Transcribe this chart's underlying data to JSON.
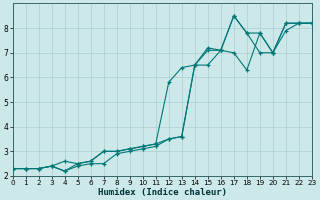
{
  "xlabel": "Humidex (Indice chaleur)",
  "bg_color": "#cce8e8",
  "grid_color_major": "#aacfcf",
  "grid_color_minor": "#bbdddd",
  "line_color": "#007777",
  "xlim": [
    0,
    23
  ],
  "ylim": [
    2,
    9
  ],
  "yticks": [
    2,
    3,
    4,
    5,
    6,
    7,
    8
  ],
  "xticks": [
    0,
    1,
    2,
    3,
    4,
    5,
    6,
    7,
    8,
    9,
    10,
    11,
    12,
    13,
    14,
    15,
    16,
    17,
    18,
    19,
    20,
    21,
    22,
    23
  ],
  "series": [
    [
      2.3,
      2.3,
      2.3,
      2.4,
      2.2,
      2.4,
      2.5,
      2.5,
      2.9,
      3.0,
      3.1,
      3.2,
      3.5,
      3.6,
      6.5,
      7.1,
      7.1,
      7.0,
      6.3,
      7.8,
      7.0,
      8.2,
      8.2,
      8.2
    ],
    [
      2.3,
      2.3,
      2.3,
      2.4,
      2.6,
      2.5,
      2.6,
      3.0,
      3.0,
      3.1,
      3.2,
      3.3,
      5.8,
      6.4,
      6.5,
      7.2,
      7.1,
      8.5,
      7.8,
      7.0,
      7.0,
      8.2,
      8.2,
      8.2
    ],
    [
      2.3,
      2.3,
      2.3,
      2.4,
      2.2,
      2.5,
      2.6,
      3.0,
      3.0,
      3.1,
      3.2,
      3.3,
      3.5,
      3.6,
      6.5,
      6.5,
      7.1,
      8.5,
      7.8,
      7.8,
      7.0,
      7.9,
      8.2,
      8.2
    ]
  ]
}
